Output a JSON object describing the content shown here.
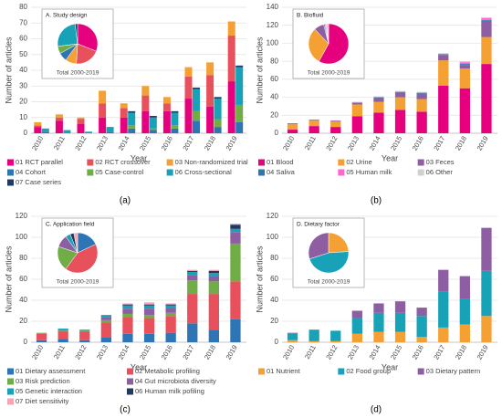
{
  "chart_data": [
    {
      "type": "bar",
      "panel_label": "(a)",
      "ylabel": "Number of articles",
      "xlabel": "Year",
      "categories": [
        "2010",
        "2011",
        "2012",
        "2013",
        "2014",
        "2015",
        "2016",
        "2017",
        "2018",
        "2019"
      ],
      "ylim": [
        0,
        80
      ],
      "yticks": [
        0,
        10,
        20,
        30,
        40,
        50,
        60,
        70,
        80
      ],
      "grid": true,
      "series": [
        {
          "name": "01 RCT parallel",
          "color": "#e6007e",
          "stack": 0,
          "values": [
            4,
            8,
            6,
            10,
            10,
            14,
            14,
            22,
            17,
            33
          ]
        },
        {
          "name": "02 RCT crossover",
          "color": "#e8505b",
          "stack": 0,
          "values": [
            1,
            2,
            3,
            9,
            6,
            10,
            5,
            14,
            20,
            29
          ]
        },
        {
          "name": "03 Non-randomized trial",
          "color": "#f5a033",
          "stack": 0,
          "values": [
            2,
            2,
            1,
            8,
            3,
            6,
            4,
            6,
            8,
            9
          ]
        },
        {
          "name": "04 Cohort",
          "color": "#2e75b6",
          "stack": 1,
          "values": [
            1,
            0,
            0,
            1,
            3,
            2,
            3,
            8,
            4,
            7
          ]
        },
        {
          "name": "05 Case-control",
          "color": "#70ad47",
          "stack": 1,
          "values": [
            0,
            0,
            0,
            0,
            2,
            1,
            2,
            6,
            5,
            11
          ]
        },
        {
          "name": "06 Cross-sectional",
          "color": "#17a2b8",
          "stack": 1,
          "values": [
            2,
            2,
            1,
            3,
            8,
            7,
            8,
            14,
            13,
            24
          ]
        },
        {
          "name": "07 Case series",
          "color": "#1f3864",
          "stack": 1,
          "values": [
            0,
            0,
            0,
            0,
            1,
            1,
            1,
            1,
            1,
            1
          ]
        }
      ],
      "inset": {
        "type": "pie",
        "title": "A. Study design",
        "note": "Total 2000-2019",
        "values": [
          31,
          20,
          9,
          7,
          6,
          25,
          2
        ]
      }
    },
    {
      "type": "bar",
      "panel_label": "(b)",
      "ylabel": "Number of articles",
      "xlabel": "Year",
      "categories": [
        "2010",
        "2011",
        "2012",
        "2013",
        "2014",
        "2015",
        "2016",
        "2017",
        "2018",
        "2019"
      ],
      "ylim": [
        0,
        140
      ],
      "yticks": [
        0,
        20,
        40,
        60,
        80,
        100,
        120,
        140
      ],
      "grid": true,
      "series": [
        {
          "name": "01 Blood",
          "color": "#e6007e",
          "stack": 0,
          "values": [
            4,
            8,
            7,
            19,
            23,
            26,
            24,
            53,
            50,
            77
          ]
        },
        {
          "name": "02 Urine",
          "color": "#f5a033",
          "stack": 0,
          "values": [
            6,
            6,
            6,
            13,
            12,
            14,
            14,
            28,
            22,
            30
          ]
        },
        {
          "name": "03 Feces",
          "color": "#8e5ea2",
          "stack": 0,
          "values": [
            1,
            1,
            1,
            2,
            4,
            5,
            6,
            6,
            4,
            18
          ]
        },
        {
          "name": "04 Saliva",
          "color": "#2e75b6",
          "stack": 0,
          "values": [
            0,
            0,
            0,
            0,
            1,
            1,
            1,
            1,
            1,
            1
          ]
        },
        {
          "name": "05 Human milk",
          "color": "#ff66cc",
          "stack": 0,
          "values": [
            0,
            0,
            0,
            0,
            0,
            0,
            0,
            0,
            2,
            2
          ]
        },
        {
          "name": "06 Other",
          "color": "#d0d0d0",
          "stack": 0,
          "values": [
            0,
            0,
            0,
            1,
            1,
            1,
            1,
            1,
            1,
            1
          ]
        }
      ],
      "inset": {
        "type": "pie",
        "title": "B. Biofluid",
        "note": "Total 2000-2019",
        "values": [
          58,
          30,
          8,
          1,
          1,
          2
        ]
      }
    },
    {
      "type": "bar",
      "panel_label": "(c)",
      "ylabel": "Number of articles",
      "xlabel": "Year",
      "categories": [
        "2010",
        "2011",
        "2012",
        "2013",
        "2014",
        "2015",
        "2016",
        "2017",
        "2018",
        "2019"
      ],
      "ylim": [
        0,
        120
      ],
      "yticks": [
        0,
        20,
        40,
        60,
        80,
        100,
        120
      ],
      "grid": true,
      "series": [
        {
          "name": "01 Dietary assessment",
          "color": "#2e75b6",
          "stack": 0,
          "values": [
            2,
            3,
            2,
            5,
            8,
            8,
            9,
            18,
            12,
            22
          ]
        },
        {
          "name": "02 Metabolic profiling",
          "color": "#e8505b",
          "stack": 0,
          "values": [
            6,
            7,
            8,
            14,
            16,
            15,
            16,
            28,
            34,
            36
          ]
        },
        {
          "name": "03 Risk prediction",
          "color": "#70ad47",
          "stack": 0,
          "values": [
            1,
            1,
            1,
            2,
            3,
            3,
            3,
            13,
            12,
            36
          ]
        },
        {
          "name": "04 Gut microbiota diversity",
          "color": "#8e5ea2",
          "stack": 0,
          "values": [
            0,
            1,
            0,
            3,
            5,
            6,
            5,
            5,
            5,
            11
          ]
        },
        {
          "name": "05 Genetic interaction",
          "color": "#17a2b8",
          "stack": 0,
          "values": [
            0,
            1,
            1,
            2,
            3,
            3,
            2,
            3,
            3,
            3
          ]
        },
        {
          "name": "06 Human milk pofiling",
          "color": "#1f3864",
          "stack": 0,
          "values": [
            0,
            0,
            0,
            0,
            1,
            1,
            1,
            1,
            2,
            4
          ]
        },
        {
          "name": "07 Diet sensitivity",
          "color": "#f4a6b5",
          "stack": 0,
          "values": [
            0,
            0,
            0,
            0,
            1,
            2,
            1,
            1,
            1,
            1
          ]
        }
      ],
      "inset": {
        "type": "pie",
        "title": "C. Application field",
        "note": "Total 2000-2019",
        "values": [
          18,
          42,
          20,
          10,
          4,
          3,
          3
        ]
      }
    },
    {
      "type": "bar",
      "panel_label": "(d)",
      "ylabel": "Number of articles",
      "xlabel": "Year",
      "categories": [
        "2010",
        "2011",
        "2012",
        "2013",
        "2014",
        "2015",
        "2016",
        "2017",
        "2018",
        "2019"
      ],
      "ylim": [
        0,
        120
      ],
      "yticks": [
        0,
        20,
        40,
        60,
        80,
        100,
        120
      ],
      "grid": true,
      "series": [
        {
          "name": "01 Nutrient",
          "color": "#f5a033",
          "stack": 0,
          "values": [
            2,
            1,
            1,
            8,
            10,
            10,
            5,
            14,
            17,
            25
          ]
        },
        {
          "name": "02 Food group",
          "color": "#17a2b8",
          "stack": 0,
          "values": [
            6,
            11,
            10,
            15,
            18,
            18,
            20,
            34,
            24,
            43
          ]
        },
        {
          "name": "03 Dietary pattern",
          "color": "#8e5ea2",
          "stack": 0,
          "values": [
            1,
            0,
            0,
            7,
            9,
            11,
            8,
            21,
            22,
            41
          ]
        }
      ],
      "inset": {
        "type": "pie",
        "title": "D. Dietary factor",
        "note": "Total 2000-2019",
        "values": [
          24,
          46,
          30
        ]
      }
    }
  ]
}
